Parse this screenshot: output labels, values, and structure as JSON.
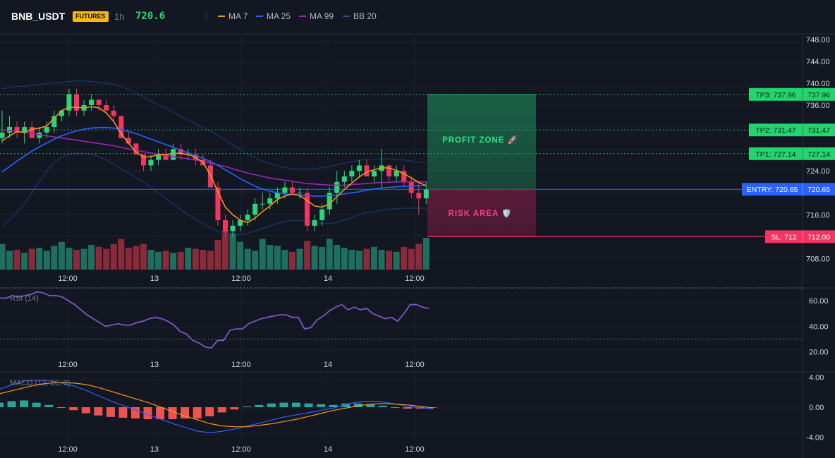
{
  "header": {
    "symbol": "BNB_USDT",
    "badge": "FUTURES",
    "timeframe": "1h",
    "last_price": "720.6",
    "legend": [
      {
        "label": "MA 7",
        "color": "#f7931a"
      },
      {
        "label": "MA 25",
        "color": "#2962ff"
      },
      {
        "label": "MA 99",
        "color": "#9c27b0"
      },
      {
        "label": "BB 20",
        "color": "#2a4a9a"
      }
    ]
  },
  "colors": {
    "up": "#26d87a",
    "down": "#f23661",
    "vol_up": "#1f6f5e",
    "vol_down": "#8b2a3a",
    "bb": "#1d3a7a",
    "ma7": "#f7931a",
    "ma25": "#2962ff",
    "ma99": "#9c27b0",
    "entry": "#2962ff",
    "target": "#2ecc71",
    "stop": "#f23661",
    "rsi": "#7e57c2",
    "macd": "#2962ff",
    "signal": "#f7931a",
    "hist_pos": "#26a69a",
    "hist_neg": "#ef5350"
  },
  "chart_data": [
    {
      "type": "candlestick",
      "pane": "price",
      "y_ticks": [
        "748.00",
        "744.00",
        "740.00",
        "736.00",
        "724.00",
        "716.00",
        "708.00"
      ],
      "ylim": [
        706,
        749
      ],
      "x_ticks": [
        "12:00",
        "13",
        "12:00",
        "14",
        "12:00"
      ],
      "candles": [
        {
          "o": 730,
          "h": 735,
          "l": 729,
          "c": 731
        },
        {
          "o": 731,
          "h": 734,
          "l": 730,
          "c": 732
        },
        {
          "o": 732,
          "h": 733,
          "l": 730,
          "c": 731
        },
        {
          "o": 731,
          "h": 733,
          "l": 729,
          "c": 732
        },
        {
          "o": 732,
          "h": 733,
          "l": 730,
          "c": 730
        },
        {
          "o": 730,
          "h": 732,
          "l": 729,
          "c": 731
        },
        {
          "o": 731,
          "h": 733,
          "l": 730,
          "c": 732
        },
        {
          "o": 732,
          "h": 735,
          "l": 731,
          "c": 734
        },
        {
          "o": 734,
          "h": 735,
          "l": 733,
          "c": 735
        },
        {
          "o": 735,
          "h": 739,
          "l": 734,
          "c": 738
        },
        {
          "o": 738,
          "h": 739,
          "l": 734,
          "c": 735
        },
        {
          "o": 735,
          "h": 737,
          "l": 734,
          "c": 736
        },
        {
          "o": 736,
          "h": 738,
          "l": 735,
          "c": 737
        },
        {
          "o": 737,
          "h": 737,
          "l": 735,
          "c": 736
        },
        {
          "o": 736,
          "h": 737,
          "l": 735,
          "c": 735
        },
        {
          "o": 735,
          "h": 736,
          "l": 733,
          "c": 734
        },
        {
          "o": 734,
          "h": 734,
          "l": 730,
          "c": 730
        },
        {
          "o": 730,
          "h": 731,
          "l": 729,
          "c": 729
        },
        {
          "o": 729,
          "h": 729,
          "l": 727,
          "c": 727
        },
        {
          "o": 727,
          "h": 727,
          "l": 724,
          "c": 725
        },
        {
          "o": 725,
          "h": 727,
          "l": 724,
          "c": 726
        },
        {
          "o": 726,
          "h": 728,
          "l": 725,
          "c": 727
        },
        {
          "o": 727,
          "h": 728,
          "l": 726,
          "c": 726
        },
        {
          "o": 726,
          "h": 729,
          "l": 726,
          "c": 728
        },
        {
          "o": 728,
          "h": 729,
          "l": 726,
          "c": 727
        },
        {
          "o": 727,
          "h": 728,
          "l": 726,
          "c": 727
        },
        {
          "o": 727,
          "h": 728,
          "l": 725,
          "c": 726
        },
        {
          "o": 726,
          "h": 727,
          "l": 725,
          "c": 725
        },
        {
          "o": 725,
          "h": 726,
          "l": 721,
          "c": 721
        },
        {
          "o": 721,
          "h": 722,
          "l": 714,
          "c": 715
        },
        {
          "o": 715,
          "h": 716,
          "l": 712,
          "c": 713
        },
        {
          "o": 713,
          "h": 715,
          "l": 712,
          "c": 714
        },
        {
          "o": 714,
          "h": 716,
          "l": 713,
          "c": 715
        },
        {
          "o": 715,
          "h": 717,
          "l": 714,
          "c": 716
        },
        {
          "o": 716,
          "h": 719,
          "l": 715,
          "c": 718
        },
        {
          "o": 718,
          "h": 720,
          "l": 717,
          "c": 718
        },
        {
          "o": 718,
          "h": 720,
          "l": 717,
          "c": 719
        },
        {
          "o": 719,
          "h": 721,
          "l": 718,
          "c": 720
        },
        {
          "o": 720,
          "h": 722,
          "l": 719,
          "c": 721
        },
        {
          "o": 721,
          "h": 722,
          "l": 720,
          "c": 720
        },
        {
          "o": 720,
          "h": 721,
          "l": 719,
          "c": 720
        },
        {
          "o": 720,
          "h": 721,
          "l": 713,
          "c": 714
        },
        {
          "o": 714,
          "h": 716,
          "l": 713,
          "c": 715
        },
        {
          "o": 715,
          "h": 718,
          "l": 714,
          "c": 717
        },
        {
          "o": 717,
          "h": 721,
          "l": 716,
          "c": 720
        },
        {
          "o": 720,
          "h": 724,
          "l": 718,
          "c": 722
        },
        {
          "o": 722,
          "h": 724,
          "l": 721,
          "c": 723
        },
        {
          "o": 723,
          "h": 725,
          "l": 722,
          "c": 724
        },
        {
          "o": 724,
          "h": 726,
          "l": 723,
          "c": 725
        },
        {
          "o": 725,
          "h": 726,
          "l": 723,
          "c": 723
        },
        {
          "o": 723,
          "h": 725,
          "l": 722,
          "c": 724
        },
        {
          "o": 724,
          "h": 728,
          "l": 721,
          "c": 725
        },
        {
          "o": 725,
          "h": 725,
          "l": 722,
          "c": 723
        },
        {
          "o": 723,
          "h": 725,
          "l": 722,
          "c": 724
        },
        {
          "o": 724,
          "h": 725,
          "l": 721,
          "c": 722
        },
        {
          "o": 722,
          "h": 723,
          "l": 719,
          "c": 720
        },
        {
          "o": 720,
          "h": 722,
          "l": 716,
          "c": 719
        },
        {
          "o": 719,
          "h": 722,
          "l": 718,
          "c": 720.6
        }
      ],
      "volume": [
        52,
        38,
        40,
        34,
        42,
        44,
        38,
        48,
        56,
        44,
        40,
        42,
        50,
        46,
        42,
        52,
        62,
        44,
        48,
        52,
        40,
        36,
        38,
        34,
        36,
        44,
        42,
        40,
        38,
        60,
        80,
        74,
        56,
        42,
        38,
        62,
        50,
        48,
        40,
        36,
        42,
        58,
        48,
        46,
        62,
        50,
        44,
        40,
        38,
        42,
        46,
        40,
        38,
        36,
        46,
        42,
        52,
        64
      ],
      "ma7": [
        729.5,
        730.4,
        731.2,
        731.0,
        731.6,
        731.8,
        732.2,
        733.6,
        735.0,
        735.6,
        735.6,
        735.5,
        735.7,
        735.5,
        734.6,
        733.0,
        730.8,
        729.0,
        727.5,
        726.5,
        726.6,
        727.0,
        727.0,
        727.2,
        727.2,
        727.0,
        726.5,
        725.6,
        723.2,
        720.2,
        717.4,
        716.0,
        715.0,
        714.6,
        715.4,
        716.6,
        717.6,
        718.8,
        719.4,
        719.8,
        719.5,
        718.6,
        717.6,
        717.4,
        718.0,
        719.3,
        720.6,
        721.8,
        722.9,
        723.8,
        724.2,
        724.6,
        724.5,
        724.1,
        723.5,
        722.7,
        721.9,
        721.3
      ],
      "ma25": [
        723.8,
        724.8,
        725.8,
        726.7,
        727.6,
        728.4,
        729.1,
        729.8,
        730.4,
        730.9,
        731.3,
        731.6,
        731.8,
        731.9,
        731.9,
        731.8,
        731.6,
        731.2,
        730.8,
        730.3,
        729.8,
        729.3,
        728.8,
        728.3,
        727.8,
        727.3,
        726.8,
        726.3,
        725.7,
        725.0,
        724.2,
        723.4,
        722.6,
        721.9,
        721.2,
        720.7,
        720.3,
        720.0,
        719.8,
        719.7,
        719.6,
        719.5,
        719.4,
        719.4,
        719.5,
        719.6,
        719.8,
        720.0,
        720.2,
        720.5,
        720.7,
        720.9,
        721.0,
        721.1,
        721.2,
        721.2,
        721.3,
        721.3
      ],
      "ma99": [
        731.5,
        731.4,
        731.2,
        731.0,
        730.8,
        730.6,
        730.4,
        730.2,
        730.0,
        729.8,
        729.6,
        729.4,
        729.2,
        729.0,
        728.8,
        728.6,
        728.3,
        728.0,
        727.8,
        727.5,
        727.3,
        727.0,
        726.8,
        726.6,
        726.4,
        726.2,
        726.0,
        725.7,
        725.4,
        725.1,
        724.8,
        724.4,
        724.0,
        723.6,
        723.3,
        723.0,
        722.7,
        722.5,
        722.3,
        722.1,
        721.9,
        721.7,
        721.6,
        721.5,
        721.4,
        721.4,
        721.4,
        721.5,
        721.6,
        721.7,
        721.8,
        721.9,
        721.9,
        722.0,
        722.0,
        722.0,
        722.0,
        722.0
      ],
      "bb_upper": [
        739.0,
        739.2,
        739.4,
        739.4,
        739.6,
        739.8,
        740.0,
        740.1,
        740.2,
        740.3,
        740.4,
        740.4,
        740.3,
        740.2,
        740.0,
        739.8,
        739.4,
        738.9,
        738.2,
        737.5,
        736.8,
        736.1,
        735.4,
        734.7,
        734.0,
        733.3,
        732.6,
        731.9,
        731.2,
        730.5,
        729.6,
        728.7,
        727.9,
        727.1,
        726.4,
        725.8,
        725.3,
        724.9,
        724.6,
        724.4,
        724.3,
        724.3,
        724.4,
        724.6,
        724.8,
        725.1,
        725.4,
        725.7,
        725.9,
        726.1,
        726.2,
        726.2,
        726.2,
        726.1,
        726.0,
        725.8,
        725.6,
        725.4
      ],
      "bb_lower": [
        714.0,
        715.0,
        716.5,
        718.0,
        720.0,
        722.0,
        724.0,
        725.5,
        726.5,
        727.0,
        727.2,
        727.2,
        727.0,
        726.6,
        726.0,
        725.2,
        724.4,
        723.6,
        722.8,
        722.0,
        721.0,
        720.0,
        719.0,
        718.0,
        717.0,
        716.0,
        715.2,
        714.4,
        713.6,
        713.0,
        712.6,
        712.4,
        712.4,
        712.6,
        713.0,
        713.5,
        714.0,
        714.4,
        714.8,
        715.0,
        715.0,
        714.8,
        714.6,
        714.4,
        714.4,
        714.6,
        715.0,
        715.5,
        716.0,
        716.4,
        716.6,
        716.8,
        717.0,
        717.1,
        717.2,
        717.2,
        717.2,
        717.2
      ]
    },
    {
      "type": "line",
      "pane": "rsi",
      "title": "RSI (14)",
      "y_ticks": [
        "60.00",
        "40.00",
        "20.00"
      ],
      "ylim": [
        16,
        70
      ],
      "levels": [
        70,
        30
      ],
      "values": [
        62,
        62,
        64,
        63,
        64,
        65,
        67,
        66,
        64,
        64,
        63,
        60,
        57,
        53,
        49,
        46,
        43,
        40,
        41,
        42,
        41,
        41,
        43,
        44,
        46,
        47,
        46,
        44,
        41,
        36,
        34,
        29,
        27,
        24,
        23,
        29,
        29,
        37,
        38,
        38,
        42,
        44,
        46,
        47,
        48,
        49,
        49,
        47,
        47,
        38,
        39,
        45,
        48,
        52,
        55,
        57,
        53,
        55,
        53,
        54,
        50,
        48,
        46,
        47,
        44,
        50,
        57,
        57,
        55,
        54
      ]
    },
    {
      "type": "line",
      "pane": "macd",
      "title": "MACD (12, 26, 9)",
      "y_ticks": [
        "4.00",
        "0.00",
        "-4.00"
      ],
      "ylim": [
        -4.6,
        4.6
      ],
      "macd": [
        2.4,
        3.0,
        3.5,
        3.6,
        3.5,
        3.2,
        2.8,
        2.2,
        1.5,
        0.8,
        0.2,
        -0.4,
        -1.0,
        -1.6,
        -2.2,
        -2.7,
        -3.2,
        -3.4,
        -3.2,
        -2.9,
        -2.5,
        -2.1,
        -1.7,
        -1.3,
        -1.0,
        -0.7,
        -0.4,
        -0.1,
        0.4,
        0.7,
        0.8,
        0.7,
        0.4,
        0.1,
        -0.1,
        -0.2
      ],
      "signal": [
        1.8,
        2.2,
        2.6,
        3.0,
        3.2,
        3.3,
        3.2,
        3.0,
        2.6,
        2.1,
        1.6,
        1.1,
        0.6,
        0.0,
        -0.6,
        -1.2,
        -1.7,
        -2.2,
        -2.5,
        -2.6,
        -2.6,
        -2.4,
        -2.2,
        -1.9,
        -1.6,
        -1.2,
        -0.8,
        -0.4,
        -0.1,
        0.2,
        0.4,
        0.5,
        0.4,
        0.3,
        0.1,
        -0.1
      ],
      "histogram": [
        0.6,
        0.8,
        0.9,
        0.6,
        0.3,
        -0.1,
        -0.4,
        -0.8,
        -1.1,
        -1.3,
        -1.4,
        -1.5,
        -1.6,
        -1.6,
        -1.6,
        -1.5,
        -1.5,
        -1.2,
        -0.7,
        -0.3,
        0.1,
        0.3,
        0.5,
        0.6,
        0.6,
        0.5,
        0.4,
        0.3,
        0.5,
        0.5,
        0.4,
        0.2,
        0.0,
        -0.2,
        -0.2,
        -0.1
      ]
    }
  ],
  "annotations": {
    "tp3": {
      "value": 737.96,
      "label": "TP3: 737.96",
      "price": "737.96"
    },
    "tp2": {
      "value": 731.47,
      "label": "TP2: 731.47",
      "price": "731.47"
    },
    "tp1": {
      "value": 727.14,
      "label": "TP1: 727.14",
      "price": "727.14"
    },
    "entry": {
      "value": 720.65,
      "label": "ENTRY: 720.65",
      "price": "720.65"
    },
    "sl": {
      "value": 712.0,
      "label": "SL: 712",
      "price": "712.00"
    },
    "profit_zone": "PROFIT ZONE 🚀",
    "risk_area": "RISK AREA 🛡️"
  }
}
